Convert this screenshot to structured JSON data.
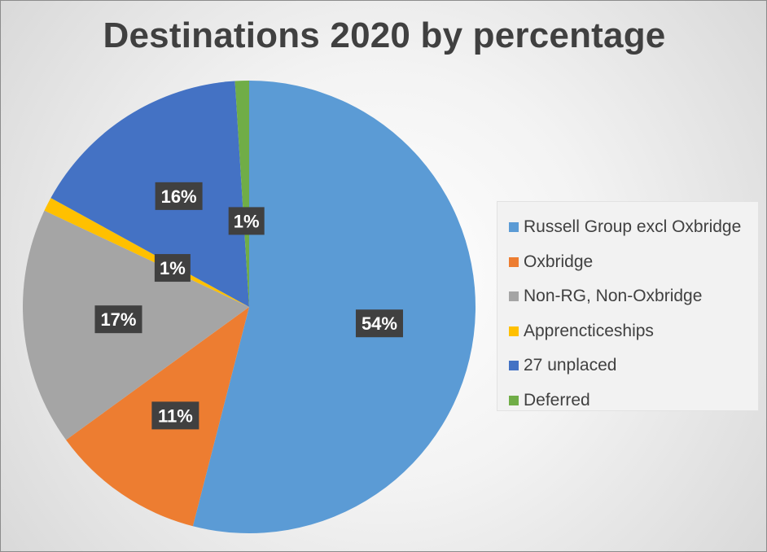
{
  "chart_data": {
    "type": "pie",
    "title": "Destinations 2020 by percentage",
    "start_angle_deg": 0,
    "direction": "clockwise",
    "legend_position": "right",
    "slices": [
      {
        "name": "Russell Group excl Oxbridge",
        "value": 54,
        "label": "54%",
        "color": "#5B9BD5"
      },
      {
        "name": "Oxbridge",
        "value": 11,
        "label": "11%",
        "color": "#ED7D31"
      },
      {
        "name": "Non-RG, Non-Oxbridge",
        "value": 17,
        "label": "17%",
        "color": "#A5A5A5"
      },
      {
        "name": "Apprencticeships",
        "value": 1,
        "label": "1%",
        "color": "#FFC000"
      },
      {
        "name": "27 unplaced",
        "value": 16,
        "label": "16%",
        "color": "#4472C4"
      },
      {
        "name": "Deferred",
        "value": 1,
        "label": "1%",
        "color": "#70AD47"
      }
    ]
  }
}
